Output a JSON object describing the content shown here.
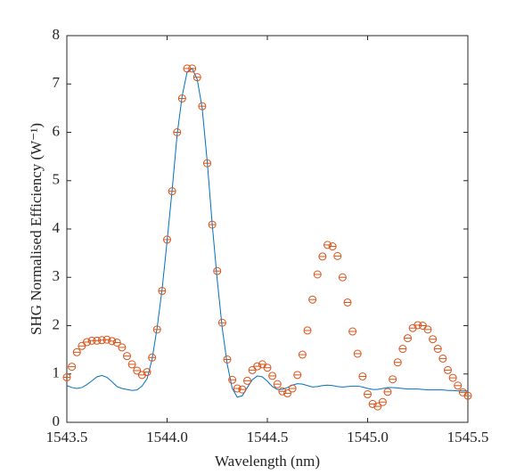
{
  "chart_data": {
    "type": "line-scatter",
    "xlabel": "Wavelength (nm)",
    "ylabel": "SHG Normalised Efficiency (W⁻¹)",
    "xlim": [
      1543.5,
      1545.5
    ],
    "xticks": [
      1543.5,
      {
        "value": 1544,
        "label": "1544.0"
      },
      1544.5,
      {
        "value": 1545,
        "label": "1545.0"
      },
      1545.5
    ],
    "ylim": [
      0,
      8
    ],
    "yticks": [
      0,
      1,
      2,
      3,
      4,
      5,
      6,
      7,
      8
    ],
    "x": [
      1543.5,
      1543.525,
      1543.55,
      1543.575,
      1543.6,
      1543.625,
      1543.65,
      1543.675,
      1543.7,
      1543.725,
      1543.75,
      1543.775,
      1543.8,
      1543.825,
      1543.85,
      1543.875,
      1543.9,
      1543.925,
      1543.95,
      1543.975,
      1544,
      1544.025,
      1544.05,
      1544.075,
      1544.1,
      1544.125,
      1544.15,
      1544.175,
      1544.2,
      1544.225,
      1544.25,
      1544.275,
      1544.3,
      1544.325,
      1544.35,
      1544.375,
      1544.4,
      1544.425,
      1544.45,
      1544.475,
      1544.5,
      1544.525,
      1544.55,
      1544.575,
      1544.6,
      1544.625,
      1544.65,
      1544.675,
      1544.7,
      1544.725,
      1544.75,
      1544.775,
      1544.8,
      1544.825,
      1544.85,
      1544.875,
      1544.9,
      1544.925,
      1544.95,
      1544.975,
      1545,
      1545.025,
      1545.05,
      1545.075,
      1545.1,
      1545.125,
      1545.15,
      1545.175,
      1545.2,
      1545.225,
      1545.25,
      1545.275,
      1545.3,
      1545.325,
      1545.35,
      1545.375,
      1545.4,
      1545.425,
      1545.45,
      1545.475,
      1545.5
    ],
    "series": [
      {
        "kind": "line",
        "color": "#0072bd",
        "values": [
          0.76,
          0.72,
          0.7,
          0.72,
          0.78,
          0.86,
          0.94,
          0.97,
          0.93,
          0.84,
          0.74,
          0.7,
          0.68,
          0.66,
          0.67,
          0.75,
          0.9,
          1.3,
          1.95,
          2.75,
          3.75,
          4.8,
          5.95,
          6.75,
          7.25,
          7.32,
          7.1,
          6.5,
          5.4,
          4.1,
          2.95,
          1.95,
          1.2,
          0.7,
          0.52,
          0.55,
          0.72,
          0.88,
          0.96,
          0.94,
          0.85,
          0.74,
          0.68,
          0.68,
          0.72,
          0.77,
          0.8,
          0.79,
          0.76,
          0.73,
          0.74,
          0.76,
          0.77,
          0.76,
          0.74,
          0.73,
          0.74,
          0.75,
          0.75,
          0.73,
          0.7,
          0.68,
          0.68,
          0.7,
          0.72,
          0.72,
          0.71,
          0.7,
          0.69,
          0.69,
          0.69,
          0.68,
          0.67,
          0.67,
          0.67,
          0.67,
          0.66,
          0.66,
          0.65,
          0.65,
          0.65
        ]
      },
      {
        "kind": "scatter",
        "color": "#d95319",
        "values": [
          0.93,
          1.15,
          1.45,
          1.58,
          1.66,
          1.69,
          1.69,
          1.7,
          1.71,
          1.68,
          1.65,
          1.55,
          1.37,
          1.2,
          1.07,
          0.98,
          1.04,
          1.34,
          1.92,
          2.72,
          3.78,
          4.78,
          6.0,
          6.7,
          7.32,
          7.32,
          7.14,
          6.54,
          5.36,
          4.09,
          3.13,
          2.06,
          1.3,
          0.88,
          0.7,
          0.68,
          0.86,
          1.08,
          1.16,
          1.2,
          1.13,
          0.96,
          0.79,
          0.64,
          0.6,
          0.7,
          0.98,
          1.4,
          1.9,
          2.54,
          3.06,
          3.43,
          3.67,
          3.64,
          3.44,
          3.0,
          2.48,
          1.88,
          1.42,
          0.95,
          0.58,
          0.38,
          0.33,
          0.42,
          0.63,
          0.89,
          1.24,
          1.52,
          1.74,
          1.95,
          2.01,
          2.0,
          1.92,
          1.72,
          1.52,
          1.32,
          1.08,
          0.92,
          0.76,
          0.62,
          0.55
        ]
      }
    ]
  }
}
